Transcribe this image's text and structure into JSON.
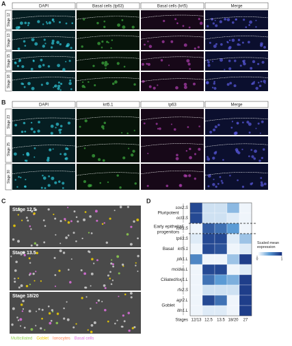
{
  "panel_a": {
    "label": "A",
    "headers": [
      "DAPI",
      "Basal cells (tp63)",
      "Basal cells (krt5)",
      "Merge"
    ],
    "rows": [
      "Stage 12",
      "Stage 13",
      "Stage 15",
      "Stage 18"
    ]
  },
  "panel_b": {
    "label": "B",
    "headers": [
      "DAPI",
      "krt5.1",
      "tp63",
      "Merge"
    ],
    "rows": [
      "Stage 23",
      "Stage 25",
      "Stage 30"
    ]
  },
  "panel_c": {
    "label": "C",
    "images": [
      "Stage 12.5",
      "Stage 13.5",
      "Stage 18/20"
    ],
    "legend": [
      {
        "name": "Multiciliated",
        "color": "#8fd14f"
      },
      {
        "name": "Goblet",
        "color": "#f0d000"
      },
      {
        "name": "Ionocytes",
        "color": "#ff7f50"
      },
      {
        "name": "Basal cells",
        "color": "#e070e0"
      }
    ]
  },
  "chart_data": {
    "type": "heatmap",
    "label": "D",
    "x_title": "Stages",
    "categories": [
      "12/13",
      "12.5",
      "13.5",
      "18/20",
      "27"
    ],
    "rows": [
      "sox2.S",
      "oct3.S",
      "tox3.S",
      "tp63.S",
      "krt5.1",
      "ptk1.L",
      "mcidas.L",
      "foxj1.L",
      "rfx2.S",
      "agr2.L",
      "itln1.L"
    ],
    "groups": [
      "Pluripotent",
      "Early epithelial progenitors",
      "Basal",
      "Ciliated",
      "Goblet"
    ],
    "values": [
      [
        0.9,
        0.15,
        0.15,
        0.35,
        0.05
      ],
      [
        0.9,
        0.15,
        0.15,
        0.1,
        0.05
      ],
      [
        0.05,
        0.8,
        0.7,
        0.5,
        0.05
      ],
      [
        0.1,
        0.9,
        0.9,
        0.1,
        0.3
      ],
      [
        0.05,
        0.9,
        0.85,
        0.05,
        0.1
      ],
      [
        0.6,
        0.05,
        0.05,
        0.3,
        0.95
      ],
      [
        0.05,
        0.9,
        0.9,
        0.05,
        0.1
      ],
      [
        0.05,
        0.7,
        0.5,
        0.4,
        0.95
      ],
      [
        0.05,
        0.15,
        0.15,
        0.15,
        0.95
      ],
      [
        0.05,
        0.9,
        0.7,
        0.05,
        0.95
      ],
      [
        0.05,
        0.1,
        0.1,
        0.05,
        0.95
      ]
    ],
    "colorbar_title": "Scaled mean expression",
    "colorbar_lim": [
      0,
      1
    ],
    "colorbar_ticks": [
      0,
      1
    ]
  }
}
